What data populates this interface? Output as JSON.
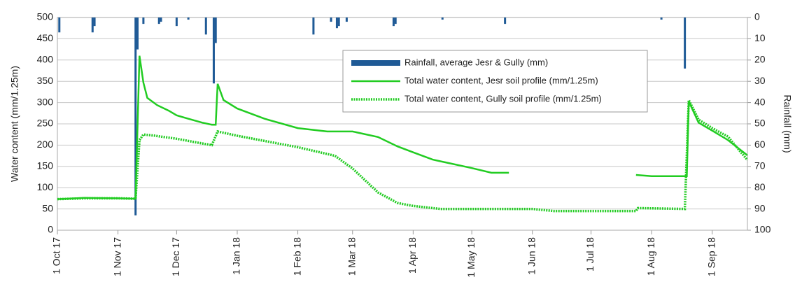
{
  "chart_data": {
    "type": "combo",
    "y_label": "Water content (mm/1.25m)",
    "y2_label": "Rainfall (mm)",
    "xlim": [
      "2017-10-01",
      "2018-09-19"
    ],
    "xticks": [
      {
        "value": "2017-10-01",
        "label": "1 Oct 17"
      },
      {
        "value": "2017-11-01",
        "label": "1 Nov 17"
      },
      {
        "value": "2017-12-01",
        "label": "1 Dec 17"
      },
      {
        "value": "2018-01-01",
        "label": "1 Jan 18"
      },
      {
        "value": "2018-02-01",
        "label": "1 Feb 18"
      },
      {
        "value": "2018-03-01",
        "label": "1 Mar 18"
      },
      {
        "value": "2018-04-01",
        "label": "1 Apr 18"
      },
      {
        "value": "2018-05-01",
        "label": "1 May 18"
      },
      {
        "value": "2018-06-01",
        "label": "1 Jun 18"
      },
      {
        "value": "2018-07-01",
        "label": "1 Jul 18"
      },
      {
        "value": "2018-08-01",
        "label": "1 Aug 18"
      },
      {
        "value": "2018-09-01",
        "label": "1 Sep 18"
      }
    ],
    "ylim": [
      0,
      500
    ],
    "yticks": [
      0,
      50,
      100,
      150,
      200,
      250,
      300,
      350,
      400,
      450,
      500
    ],
    "y2lim": [
      0,
      100
    ],
    "y2_inverted": true,
    "y2ticks": [
      0,
      10,
      20,
      30,
      40,
      50,
      60,
      70,
      80,
      90,
      100
    ],
    "grid": true,
    "legend": "top-right",
    "series": [
      {
        "name": "Rainfall, average Jesr & Gully (mm)",
        "kind": "bar",
        "axis": "y2",
        "color": "#1f5a96",
        "x": [
          "2017-10-02",
          "2017-10-19",
          "2017-10-20",
          "2017-11-10",
          "2017-11-11",
          "2017-11-14",
          "2017-11-22",
          "2017-11-23",
          "2017-12-01",
          "2017-12-07",
          "2017-12-16",
          "2017-12-20",
          "2017-12-21",
          "2018-02-09",
          "2018-02-18",
          "2018-02-21",
          "2018-02-22",
          "2018-02-26",
          "2018-03-22",
          "2018-03-23",
          "2018-04-16",
          "2018-05-18",
          "2018-08-06",
          "2018-08-18"
        ],
        "values": [
          7,
          7,
          4,
          93,
          15,
          3,
          3,
          2,
          4,
          1,
          8,
          31,
          12,
          8,
          2,
          5,
          4,
          2,
          4,
          3,
          1,
          3,
          1,
          24
        ]
      },
      {
        "name": "Total water content, Jesr soil profile (mm/1.25m)",
        "kind": "line",
        "color": "#22cc22",
        "x": [
          "2017-10-01",
          "2017-10-15",
          "2017-11-01",
          "2017-11-10",
          "2017-11-12",
          "2017-11-14",
          "2017-11-16",
          "2017-11-21",
          "2017-11-27",
          "2017-12-01",
          "2017-12-07",
          "2017-12-14",
          "2017-12-19",
          "2017-12-21",
          "2017-12-22",
          "2017-12-25",
          "2018-01-01",
          "2018-01-15",
          "2018-02-01",
          "2018-02-16",
          "2018-03-01",
          "2018-03-14",
          "2018-03-24",
          "2018-04-01",
          "2018-04-11",
          "2018-05-01",
          "2018-05-11",
          "2018-05-20",
          "2018-06-20",
          "2018-07-24",
          "2018-08-01",
          "2018-08-19",
          "2018-08-20",
          "2018-08-25",
          "2018-09-01",
          "2018-09-09",
          "2018-09-19"
        ],
        "values": [
          73,
          76,
          75,
          74,
          410,
          347,
          311,
          294,
          281,
          270,
          262,
          253,
          248,
          248,
          344,
          306,
          286,
          262,
          240,
          232,
          232,
          219,
          197,
          183,
          166,
          146,
          135,
          135,
          null,
          130,
          127,
          127,
          303,
          253,
          234,
          212,
          176
        ]
      },
      {
        "name": "Total water content, Gully soil profile (mm/1.25m)",
        "kind": "line",
        "dashed": true,
        "color": "#22cc22",
        "x": [
          "2017-10-01",
          "2017-10-15",
          "2017-11-01",
          "2017-11-10",
          "2017-11-12",
          "2017-11-14",
          "2017-11-20",
          "2017-12-01",
          "2017-12-14",
          "2017-12-19",
          "2017-12-22",
          "2018-01-01",
          "2018-02-01",
          "2018-02-20",
          "2018-03-01",
          "2018-03-14",
          "2018-03-24",
          "2018-04-01",
          "2018-04-15",
          "2018-05-01",
          "2018-06-01",
          "2018-06-12",
          "2018-07-24",
          "2018-07-25",
          "2018-08-18",
          "2018-08-20",
          "2018-08-25",
          "2018-09-01",
          "2018-09-09",
          "2018-09-19"
        ],
        "values": [
          73,
          75,
          75,
          74,
          212,
          225,
          222,
          215,
          204,
          200,
          232,
          222,
          195,
          175,
          145,
          89,
          64,
          57,
          50,
          50,
          50,
          45,
          45,
          52,
          50,
          306,
          260,
          240,
          220,
          165
        ]
      }
    ]
  }
}
